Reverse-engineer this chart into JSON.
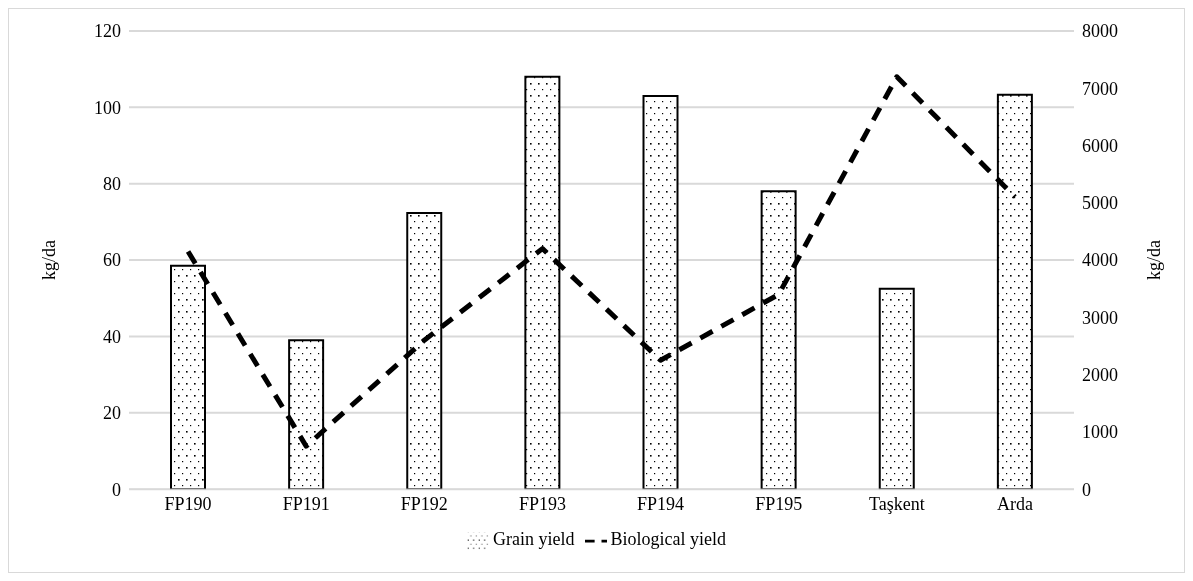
{
  "chart_data": {
    "type": "bar",
    "categories": [
      "FP190",
      "FP191",
      "FP192",
      "FP193",
      "FP194",
      "FP195",
      "Taşkent",
      "Arda"
    ],
    "series": [
      {
        "name": "Grain yield",
        "color": "#000000",
        "values": [
          58.5,
          39,
          72.3,
          108,
          103,
          78,
          52.5,
          103.3
        ]
      },
      {
        "name": "Biological yield",
        "type": "line",
        "axis": "y2",
        "color": "#000000",
        "line_style": "dashed",
        "values": [
          4150,
          750,
          2600,
          4200,
          2250,
          3400,
          7200,
          5100
        ]
      }
    ],
    "ylabel": "kg/da",
    "y2label": "kg/da",
    "ylim": [
      0,
      120
    ],
    "yticks": [
      0,
      20,
      40,
      60,
      80,
      100,
      120
    ],
    "y2lim": [
      0,
      8000
    ],
    "y2ticks": [
      0,
      1000,
      2000,
      3000,
      4000,
      5000,
      6000,
      7000,
      8000
    ],
    "grid": "y",
    "legend": "bottom",
    "marker": "none"
  }
}
